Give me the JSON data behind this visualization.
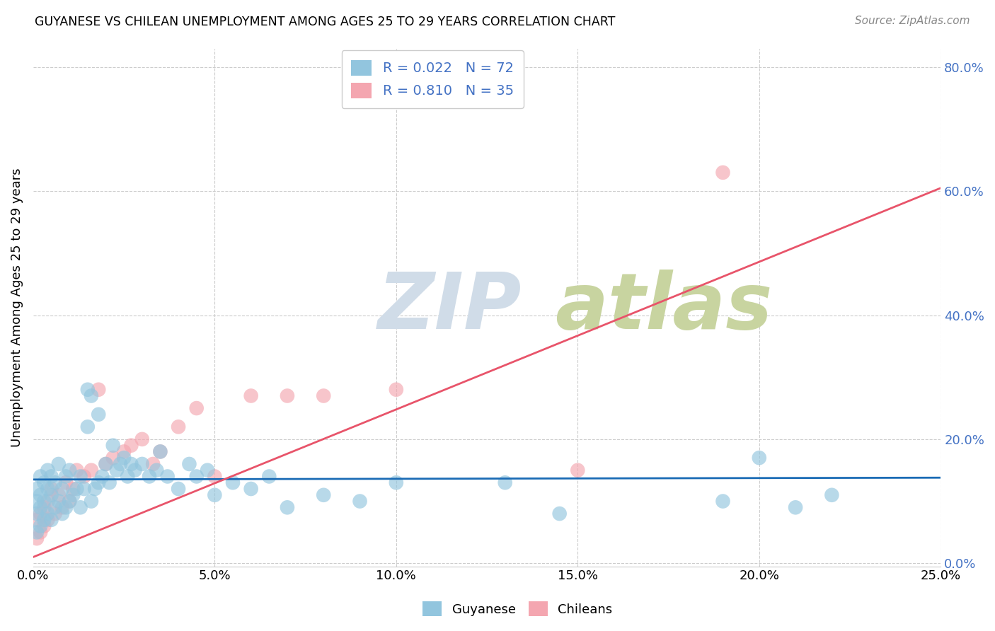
{
  "title": "GUYANESE VS CHILEAN UNEMPLOYMENT AMONG AGES 25 TO 29 YEARS CORRELATION CHART",
  "source": "Source: ZipAtlas.com",
  "ylabel": "Unemployment Among Ages 25 to 29 years",
  "xlim": [
    0.0,
    0.25
  ],
  "ylim": [
    -0.005,
    0.83
  ],
  "yticks": [
    0.0,
    0.2,
    0.4,
    0.6,
    0.8
  ],
  "xticks": [
    0.0,
    0.05,
    0.1,
    0.15,
    0.2,
    0.25
  ],
  "guyanese_color": "#92c5de",
  "chilean_color": "#f4a6b0",
  "guyanese_line_color": "#1a6bb5",
  "chilean_line_color": "#e8546a",
  "R_guyanese": 0.022,
  "N_guyanese": 72,
  "R_chilean": 0.81,
  "N_chilean": 35,
  "watermark_zip": "ZIP",
  "watermark_atlas": "atlas",
  "watermark_color_zip": "#d0dce8",
  "watermark_color_atlas": "#c8d4a0",
  "guyanese_line_y0": 0.135,
  "guyanese_line_y1": 0.138,
  "chilean_line_y0": 0.01,
  "chilean_line_y1": 0.605,
  "guyanese_x": [
    0.001,
    0.001,
    0.001,
    0.001,
    0.002,
    0.002,
    0.002,
    0.002,
    0.003,
    0.003,
    0.003,
    0.004,
    0.004,
    0.004,
    0.005,
    0.005,
    0.005,
    0.006,
    0.006,
    0.007,
    0.007,
    0.008,
    0.008,
    0.009,
    0.009,
    0.01,
    0.01,
    0.011,
    0.012,
    0.013,
    0.013,
    0.014,
    0.015,
    0.016,
    0.016,
    0.017,
    0.018,
    0.019,
    0.02,
    0.021,
    0.022,
    0.023,
    0.024,
    0.025,
    0.026,
    0.027,
    0.028,
    0.03,
    0.032,
    0.034,
    0.035,
    0.037,
    0.04,
    0.043,
    0.045,
    0.048,
    0.05,
    0.055,
    0.06,
    0.065,
    0.07,
    0.08,
    0.09,
    0.1,
    0.13,
    0.145,
    0.19,
    0.2,
    0.21,
    0.22,
    0.015,
    0.018
  ],
  "guyanese_y": [
    0.05,
    0.08,
    0.1,
    0.12,
    0.06,
    0.09,
    0.11,
    0.14,
    0.07,
    0.1,
    0.13,
    0.08,
    0.12,
    0.15,
    0.07,
    0.11,
    0.14,
    0.09,
    0.13,
    0.1,
    0.16,
    0.08,
    0.12,
    0.09,
    0.14,
    0.1,
    0.15,
    0.11,
    0.12,
    0.09,
    0.14,
    0.12,
    0.28,
    0.1,
    0.27,
    0.12,
    0.13,
    0.14,
    0.16,
    0.13,
    0.19,
    0.15,
    0.16,
    0.17,
    0.14,
    0.16,
    0.15,
    0.16,
    0.14,
    0.15,
    0.18,
    0.14,
    0.12,
    0.16,
    0.14,
    0.15,
    0.11,
    0.13,
    0.12,
    0.14,
    0.09,
    0.11,
    0.1,
    0.13,
    0.13,
    0.08,
    0.1,
    0.17,
    0.09,
    0.11,
    0.22,
    0.24
  ],
  "chilean_x": [
    0.001,
    0.001,
    0.002,
    0.002,
    0.003,
    0.003,
    0.004,
    0.004,
    0.005,
    0.006,
    0.007,
    0.008,
    0.009,
    0.01,
    0.011,
    0.012,
    0.014,
    0.016,
    0.018,
    0.02,
    0.022,
    0.025,
    0.027,
    0.03,
    0.033,
    0.035,
    0.04,
    0.045,
    0.05,
    0.06,
    0.07,
    0.08,
    0.1,
    0.19,
    0.15
  ],
  "chilean_y": [
    0.04,
    0.07,
    0.05,
    0.08,
    0.06,
    0.09,
    0.07,
    0.1,
    0.12,
    0.08,
    0.11,
    0.09,
    0.13,
    0.1,
    0.12,
    0.15,
    0.14,
    0.15,
    0.28,
    0.16,
    0.17,
    0.18,
    0.19,
    0.2,
    0.16,
    0.18,
    0.22,
    0.25,
    0.14,
    0.27,
    0.27,
    0.27,
    0.28,
    0.63,
    0.15
  ]
}
